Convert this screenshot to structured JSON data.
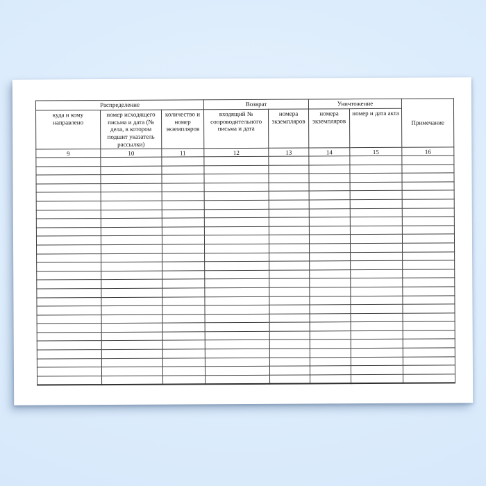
{
  "page": {
    "background_top_color": "#dcecfc",
    "background_bottom_color": "#d2e5f9",
    "paper_color": "#ffffff",
    "line_color": "#3d3d3d"
  },
  "table": {
    "groups": [
      {
        "label": "Распределение",
        "span_columns": 3
      },
      {
        "label": "Возврат",
        "span_columns": 2
      },
      {
        "label": "Уничтожение",
        "span_columns": 2
      }
    ],
    "note_header": "Примечание",
    "subheaders": [
      "куда и кому направлено",
      "номер исходящего письма и дата (№ дела, в котором подшит указатель рассылки)",
      "количество и номер экземпляров",
      "входящий № сопроводительного письма и дата",
      "номера экземпляров",
      "номера экземпляров",
      "номер и дата акта"
    ],
    "column_numbers": [
      "9",
      "10",
      "11",
      "12",
      "13",
      "14",
      "15",
      "16"
    ],
    "column_count": 8,
    "empty_body_rows": 26
  }
}
